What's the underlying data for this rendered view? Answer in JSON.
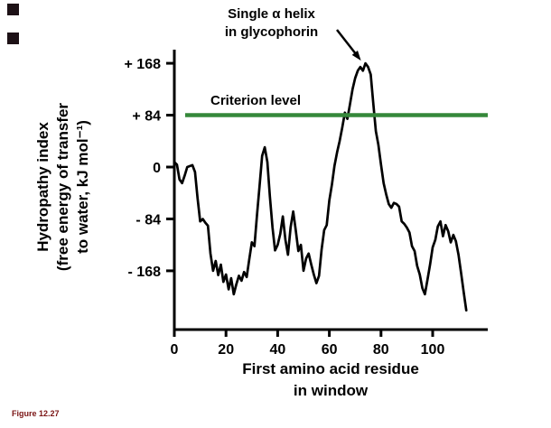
{
  "figure": {
    "background": "#ffffff",
    "caption": "Figure 12.27",
    "caption_color": "#7a1414",
    "marker_color": "#1d1116"
  },
  "labels": {
    "ylabel_line1": "Hydropathy index",
    "ylabel_line2": "(free energy of transfer",
    "ylabel_line3": "to water, kJ mol⁻¹)",
    "xlabel_line1": "First amino acid residue",
    "xlabel_line2": "in window"
  },
  "chart_data": {
    "type": "line",
    "title": "",
    "xlabel": "First amino acid residue in window",
    "ylabel": "Hydropathy index (free energy of transfer to water, kJ mol⁻¹)",
    "xlim": [
      0,
      115
    ],
    "ylim": [
      -260,
      190
    ],
    "grid": false,
    "legend": "none",
    "axis_color": "#000000",
    "x_ticks": [
      0,
      20,
      40,
      60,
      80,
      100
    ],
    "y_ticks": [
      {
        "value": 168,
        "label": "+ 168"
      },
      {
        "value": 84,
        "label": "+ 84"
      },
      {
        "value": 0,
        "label": "0"
      },
      {
        "value": -84,
        "label": "- 84"
      },
      {
        "value": -168,
        "label": "- 168"
      }
    ],
    "criterion": {
      "label": "Criterion level",
      "value": 84,
      "color": "#35883a"
    },
    "annotation": {
      "line1": "Single α helix",
      "line2": "in glycophorin",
      "arrow_to": [
        74,
        168
      ]
    },
    "series": [
      {
        "name": "Hydropathy index of glycophorin",
        "color": "#000000",
        "points": [
          [
            0,
            8
          ],
          [
            1,
            4
          ],
          [
            2,
            -20
          ],
          [
            3,
            -26
          ],
          [
            4,
            -14
          ],
          [
            5,
            0
          ],
          [
            7,
            3
          ],
          [
            8,
            -8
          ],
          [
            9,
            -50
          ],
          [
            10,
            -88
          ],
          [
            11,
            -84
          ],
          [
            12,
            -90
          ],
          [
            13,
            -95
          ],
          [
            14,
            -140
          ],
          [
            15,
            -168
          ],
          [
            16,
            -152
          ],
          [
            17,
            -175
          ],
          [
            18,
            -158
          ],
          [
            19,
            -186
          ],
          [
            20,
            -174
          ],
          [
            21,
            -198
          ],
          [
            22,
            -180
          ],
          [
            23,
            -206
          ],
          [
            24,
            -190
          ],
          [
            25,
            -176
          ],
          [
            26,
            -184
          ],
          [
            27,
            -170
          ],
          [
            28,
            -178
          ],
          [
            29,
            -150
          ],
          [
            30,
            -122
          ],
          [
            31,
            -128
          ],
          [
            32,
            -78
          ],
          [
            33,
            -30
          ],
          [
            34,
            18
          ],
          [
            35,
            32
          ],
          [
            36,
            8
          ],
          [
            37,
            -48
          ],
          [
            38,
            -98
          ],
          [
            39,
            -135
          ],
          [
            40,
            -126
          ],
          [
            41,
            -108
          ],
          [
            42,
            -80
          ],
          [
            43,
            -118
          ],
          [
            44,
            -142
          ],
          [
            45,
            -98
          ],
          [
            46,
            -72
          ],
          [
            47,
            -102
          ],
          [
            48,
            -136
          ],
          [
            49,
            -126
          ],
          [
            50,
            -168
          ],
          [
            51,
            -148
          ],
          [
            52,
            -140
          ],
          [
            53,
            -158
          ],
          [
            54,
            -174
          ],
          [
            55,
            -188
          ],
          [
            56,
            -176
          ],
          [
            57,
            -134
          ],
          [
            58,
            -102
          ],
          [
            59,
            -94
          ],
          [
            60,
            -54
          ],
          [
            61,
            -28
          ],
          [
            62,
            2
          ],
          [
            63,
            24
          ],
          [
            64,
            42
          ],
          [
            65,
            64
          ],
          [
            66,
            88
          ],
          [
            67,
            78
          ],
          [
            68,
            102
          ],
          [
            69,
            126
          ],
          [
            70,
            144
          ],
          [
            71,
            156
          ],
          [
            72,
            162
          ],
          [
            73,
            156
          ],
          [
            74,
            168
          ],
          [
            75,
            162
          ],
          [
            76,
            150
          ],
          [
            77,
            104
          ],
          [
            78,
            58
          ],
          [
            79,
            36
          ],
          [
            80,
            4
          ],
          [
            81,
            -26
          ],
          [
            82,
            -44
          ],
          [
            83,
            -60
          ],
          [
            84,
            -66
          ],
          [
            85,
            -58
          ],
          [
            86,
            -60
          ],
          [
            87,
            -64
          ],
          [
            88,
            -88
          ],
          [
            89,
            -92
          ],
          [
            90,
            -98
          ],
          [
            91,
            -106
          ],
          [
            92,
            -128
          ],
          [
            93,
            -136
          ],
          [
            94,
            -160
          ],
          [
            95,
            -174
          ],
          [
            96,
            -196
          ],
          [
            97,
            -206
          ],
          [
            98,
            -182
          ],
          [
            99,
            -158
          ],
          [
            100,
            -130
          ],
          [
            101,
            -118
          ],
          [
            102,
            -96
          ],
          [
            103,
            -88
          ],
          [
            104,
            -112
          ],
          [
            105,
            -94
          ],
          [
            106,
            -104
          ],
          [
            107,
            -122
          ],
          [
            108,
            -110
          ],
          [
            109,
            -120
          ],
          [
            110,
            -142
          ],
          [
            111,
            -172
          ],
          [
            112,
            -202
          ],
          [
            113,
            -232
          ]
        ]
      }
    ]
  }
}
